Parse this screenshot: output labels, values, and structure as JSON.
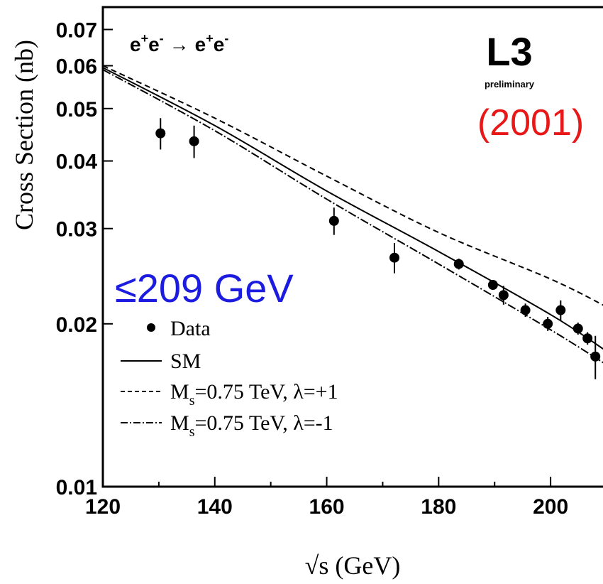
{
  "chart_data": {
    "type": "scatter",
    "title": "",
    "process_label": {
      "base": "e",
      "sup_plus": "+",
      "sup_minus": "-",
      "arrow": "→"
    },
    "experiment": "L3",
    "preliminary": "preliminary",
    "year": "(2001)",
    "energy_annotation": "≤209 GeV",
    "xlabel": "√s (GeV)",
    "ylabel": "Cross Section (nb)",
    "xlim": [
      120,
      210
    ],
    "ylim": [
      0.01,
      0.077
    ],
    "yscale": "log",
    "x_ticks": [
      120,
      140,
      160,
      180,
      200
    ],
    "y_ticks": [
      0.01,
      0.02,
      0.03,
      0.04,
      0.05,
      0.06,
      0.07
    ],
    "y_tick_labels": [
      "0.01",
      "0.02",
      "0.03",
      "0.04",
      "0.05",
      "0.06",
      "0.07"
    ],
    "grid": false,
    "legend_position": "lower-left",
    "legend": [
      {
        "label": "Data",
        "style": "marker"
      },
      {
        "label": "SM",
        "style": "solid"
      },
      {
        "label_prefix": "M",
        "label_sub": "s",
        "label_suffix": "=0.75 TeV, λ=+1",
        "style": "dashed"
      },
      {
        "label_prefix": "M",
        "label_sub": "s",
        "label_suffix": "=0.75 TeV, λ=-1",
        "style": "dashdot"
      }
    ],
    "data_points": [
      {
        "x": 130.3,
        "y": 0.045,
        "err": 0.003
      },
      {
        "x": 136.3,
        "y": 0.0435,
        "err": 0.003
      },
      {
        "x": 161.3,
        "y": 0.031,
        "err": 0.0018
      },
      {
        "x": 172.1,
        "y": 0.0265,
        "err": 0.0017
      },
      {
        "x": 183.6,
        "y": 0.0258,
        "err": 0.0006
      },
      {
        "x": 189.7,
        "y": 0.0236,
        "err": 0.0004
      },
      {
        "x": 191.6,
        "y": 0.0226,
        "err": 0.0009
      },
      {
        "x": 195.5,
        "y": 0.0212,
        "err": 0.0006
      },
      {
        "x": 199.5,
        "y": 0.02,
        "err": 0.0006
      },
      {
        "x": 201.8,
        "y": 0.0212,
        "err": 0.0009
      },
      {
        "x": 204.9,
        "y": 0.0196,
        "err": 0.0005
      },
      {
        "x": 206.6,
        "y": 0.0188,
        "err": 0.0005
      },
      {
        "x": 208.0,
        "y": 0.0174,
        "err": 0.0016
      }
    ],
    "curves": [
      {
        "name": "SM",
        "style": "solid",
        "x": [
          120,
          140,
          160,
          180,
          200,
          210
        ],
        "y": [
          0.0595,
          0.0465,
          0.0352,
          0.0272,
          0.0208,
          0.0178
        ]
      },
      {
        "name": "Ms=0.75 TeV, λ=+1",
        "style": "dashed",
        "x": [
          120,
          140,
          160,
          180,
          200,
          210
        ],
        "y": [
          0.06,
          0.048,
          0.0375,
          0.0295,
          0.0242,
          0.0215
        ]
      },
      {
        "name": "Ms=0.75 TeV, λ=-1",
        "style": "dashdot",
        "x": [
          120,
          140,
          160,
          180,
          200,
          210
        ],
        "y": [
          0.059,
          0.0455,
          0.034,
          0.0258,
          0.0195,
          0.0168
        ]
      }
    ]
  }
}
